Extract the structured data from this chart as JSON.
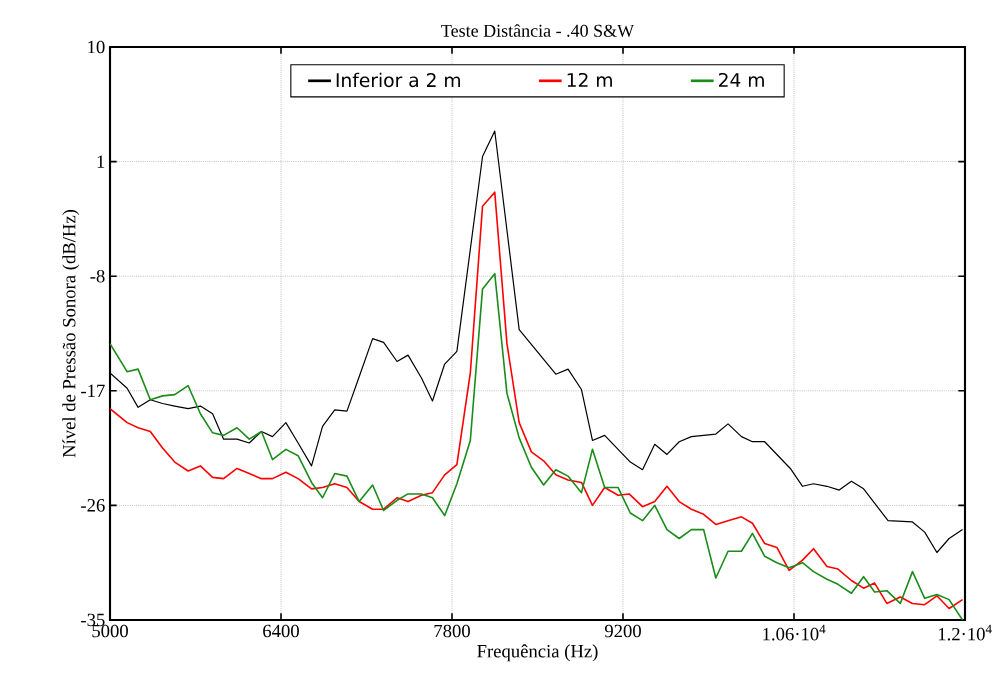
{
  "chart_data": {
    "type": "line",
    "title": "Teste Distância - .40 S&W",
    "xlabel": "Frequência (Hz)",
    "ylabel": "Nível de Pressão Sonora (dB/Hz)",
    "xlim": [
      5000,
      12000
    ],
    "ylim": [
      -35,
      10
    ],
    "xticks": [
      5000,
      6400,
      7800,
      9200,
      {
        "value": 10600,
        "label": "1.06·10$^{4}$"
      },
      {
        "value": 12000,
        "label": "1.2·10$^{4}$"
      }
    ],
    "yticks": [
      -35,
      -26,
      -17,
      -8,
      1,
      10
    ],
    "grid": true,
    "legend": "top",
    "marker": "none",
    "line_style": "solid",
    "series": [
      {
        "name": "Inferior a 2 m",
        "color": "#000000",
        "x": [
          5000,
          5140,
          5230,
          5330,
          5430,
          5530,
          5640,
          5740,
          5840,
          5930,
          6040,
          6140,
          6240,
          6330,
          6440,
          6540,
          6650,
          6740,
          6840,
          6940,
          7040,
          7150,
          7240,
          7350,
          7440,
          7550,
          7640,
          7740,
          7840,
          8050,
          8150,
          8350,
          8650,
          8750,
          8860,
          8950,
          9050,
          9260,
          9360,
          9460,
          9560,
          9660,
          9760,
          9960,
          10060,
          10170,
          10260,
          10360,
          10570,
          10670,
          10760,
          10870,
          10970,
          11070,
          11170,
          11370,
          11570,
          11670,
          11770,
          11870,
          11980
        ],
        "values": [
          -15.6,
          -16.8,
          -18.3,
          -17.7,
          -18.0,
          -18.2,
          -18.4,
          -18.2,
          -18.8,
          -20.8,
          -20.8,
          -21.1,
          -20.2,
          -20.6,
          -19.5,
          -21.1,
          -22.9,
          -19.8,
          -18.5,
          -18.6,
          -15.9,
          -12.9,
          -13.2,
          -14.7,
          -14.2,
          -16.0,
          -17.8,
          -14.9,
          -13.9,
          1.4,
          3.4,
          -12.2,
          -15.7,
          -15.3,
          -16.9,
          -20.9,
          -20.5,
          -22.6,
          -23.2,
          -21.2,
          -22.0,
          -21.0,
          -20.6,
          -20.4,
          -19.6,
          -20.6,
          -21.0,
          -21.0,
          -23.1,
          -24.5,
          -24.3,
          -24.5,
          -24.8,
          -24.1,
          -24.7,
          -27.2,
          -27.3,
          -28.1,
          -29.7,
          -28.6,
          -27.9
        ]
      },
      {
        "name": "12 m",
        "color": "#ff0000",
        "x": [
          5000,
          5140,
          5230,
          5330,
          5430,
          5530,
          5640,
          5740,
          5840,
          5930,
          6040,
          6140,
          6240,
          6330,
          6440,
          6540,
          6650,
          6740,
          6840,
          6940,
          7040,
          7150,
          7240,
          7350,
          7440,
          7550,
          7640,
          7740,
          7840,
          7950,
          8050,
          8150,
          8250,
          8350,
          8450,
          8550,
          8650,
          8750,
          8860,
          8950,
          9050,
          9160,
          9250,
          9360,
          9460,
          9560,
          9660,
          9760,
          9860,
          9960,
          10060,
          10170,
          10260,
          10360,
          10460,
          10560,
          10670,
          10760,
          10870,
          10960,
          11070,
          11170,
          11260,
          11360,
          11470,
          11570,
          11670,
          11770,
          11870,
          11980
        ],
        "values": [
          -18.4,
          -19.5,
          -19.9,
          -20.2,
          -21.5,
          -22.6,
          -23.3,
          -22.9,
          -23.8,
          -23.9,
          -23.1,
          -23.5,
          -23.9,
          -23.9,
          -23.4,
          -23.9,
          -24.7,
          -24.6,
          -24.3,
          -24.6,
          -25.7,
          -26.3,
          -26.3,
          -25.4,
          -25.7,
          -25.2,
          -25.0,
          -23.6,
          -22.8,
          -15.6,
          -2.5,
          -1.4,
          -13.3,
          -19.5,
          -21.8,
          -22.5,
          -23.6,
          -24.0,
          -24.2,
          -26.0,
          -24.6,
          -25.2,
          -25.1,
          -26.1,
          -25.7,
          -24.5,
          -25.7,
          -26.3,
          -26.7,
          -27.5,
          -27.2,
          -26.9,
          -27.4,
          -29.0,
          -29.3,
          -31.1,
          -30.3,
          -29.4,
          -30.8,
          -31.0,
          -31.9,
          -32.5,
          -32.1,
          -33.7,
          -33.2,
          -33.7,
          -33.8,
          -33.1,
          -34.1,
          -33.4
        ]
      },
      {
        "name": "24 m",
        "color": "#1a8c1a",
        "x": [
          5000,
          5140,
          5230,
          5330,
          5430,
          5530,
          5640,
          5740,
          5840,
          5930,
          6040,
          6140,
          6240,
          6330,
          6440,
          6540,
          6650,
          6740,
          6840,
          6940,
          7040,
          7150,
          7240,
          7350,
          7440,
          7550,
          7640,
          7740,
          7840,
          7950,
          8050,
          8150,
          8250,
          8350,
          8450,
          8550,
          8650,
          8750,
          8860,
          8950,
          9050,
          9160,
          9260,
          9360,
          9460,
          9560,
          9660,
          9760,
          9860,
          9960,
          10060,
          10170,
          10260,
          10360,
          10460,
          10560,
          10670,
          10760,
          10870,
          10960,
          11070,
          11170,
          11260,
          11360,
          11470,
          11570,
          11670,
          11770,
          11870,
          11980
        ],
        "values": [
          -13.3,
          -15.5,
          -15.3,
          -17.7,
          -17.4,
          -17.3,
          -16.6,
          -18.8,
          -20.3,
          -20.5,
          -19.9,
          -20.8,
          -20.2,
          -22.4,
          -21.6,
          -22.1,
          -24.2,
          -25.4,
          -23.5,
          -23.7,
          -25.7,
          -24.4,
          -26.4,
          -25.6,
          -25.1,
          -25.1,
          -25.4,
          -26.8,
          -24.3,
          -20.9,
          -9.0,
          -7.8,
          -17.2,
          -20.7,
          -23.0,
          -24.4,
          -23.2,
          -23.7,
          -25.0,
          -21.6,
          -24.6,
          -24.6,
          -26.6,
          -27.2,
          -26.0,
          -27.9,
          -28.6,
          -27.9,
          -27.9,
          -31.7,
          -29.6,
          -29.6,
          -28.2,
          -30.0,
          -30.5,
          -30.9,
          -30.5,
          -31.2,
          -31.8,
          -32.2,
          -32.9,
          -31.6,
          -32.8,
          -32.7,
          -33.7,
          -31.2,
          -33.3,
          -33.0,
          -33.4,
          -35.0
        ]
      }
    ]
  }
}
